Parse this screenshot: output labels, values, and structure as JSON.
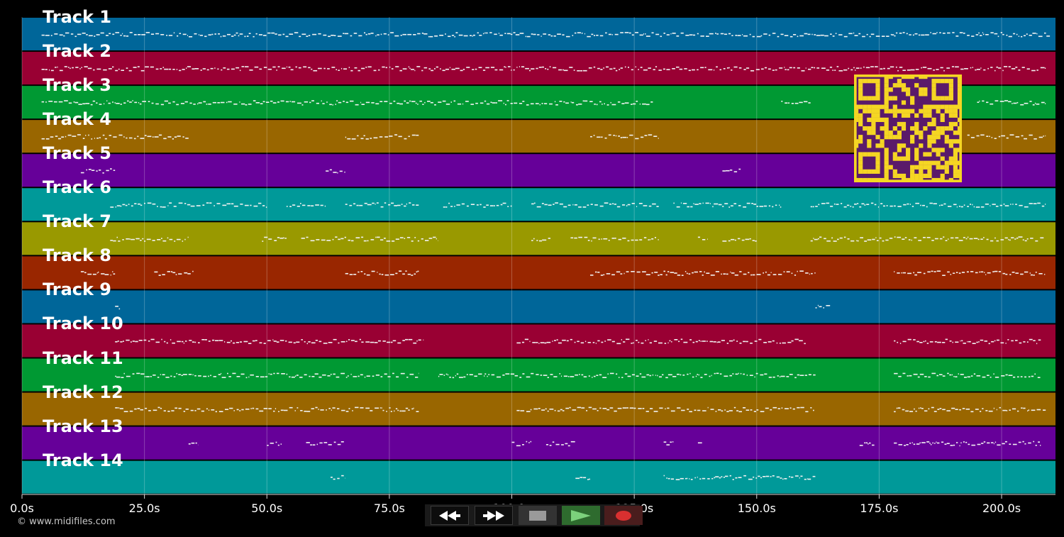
{
  "tracks": [
    {
      "label": "Track 1",
      "color": "#006699"
    },
    {
      "label": "Track 2",
      "color": "#990033"
    },
    {
      "label": "Track 3",
      "color": "#009933"
    },
    {
      "label": "Track 4",
      "color": "#996600"
    },
    {
      "label": "Track 5",
      "color": "#660099"
    },
    {
      "label": "Track 6",
      "color": "#009999"
    },
    {
      "label": "Track 7",
      "color": "#999900"
    },
    {
      "label": "Track 8",
      "color": "#992600"
    },
    {
      "label": "Track 9",
      "color": "#006699"
    },
    {
      "label": "Track 10",
      "color": "#990033"
    },
    {
      "label": "Track 11",
      "color": "#009933"
    },
    {
      "label": "Track 12",
      "color": "#996600"
    },
    {
      "label": "Track 13",
      "color": "#660099"
    },
    {
      "label": "Track 14",
      "color": "#009999"
    }
  ],
  "timeline": {
    "ticks": [
      {
        "value": 0,
        "label": "0.0s"
      },
      {
        "value": 25,
        "label": "25.0s"
      },
      {
        "value": 50,
        "label": "50.0s"
      },
      {
        "value": 75,
        "label": "75.0s"
      },
      {
        "value": 100,
        "label": "100.0s"
      },
      {
        "value": 125,
        "label": "125.0s"
      },
      {
        "value": 150,
        "label": "150.0s"
      },
      {
        "value": 175,
        "label": "175.0s"
      },
      {
        "value": 200,
        "label": "200.0s"
      }
    ],
    "max_seconds": 211
  },
  "copyright": "© www.midifiles.com",
  "transport": {
    "rewind_icon": "rewind-icon",
    "forward_icon": "fast-forward-icon",
    "stop_icon": "stop-icon",
    "play_icon": "play-icon",
    "record_icon": "record-icon",
    "play_color": "#7cd17c",
    "record_color": "#d83030"
  },
  "qr": {
    "fg": "#f5d623",
    "bg": "#5a1a6a"
  },
  "notes": {
    "t1": [
      [
        4,
        210
      ]
    ],
    "t2": [
      [
        4,
        209
      ]
    ],
    "t3": [
      [
        4,
        129
      ],
      [
        155,
        161
      ],
      [
        195,
        209
      ]
    ],
    "t4": [
      [
        4,
        34
      ],
      [
        66,
        81
      ],
      [
        116,
        130
      ],
      [
        193,
        209
      ]
    ],
    "t5": [
      [
        12,
        19
      ],
      [
        62,
        66
      ],
      [
        143,
        147
      ]
    ],
    "t6": [
      [
        18,
        50
      ],
      [
        54,
        62
      ],
      [
        66,
        81
      ],
      [
        86,
        100
      ],
      [
        104,
        130
      ],
      [
        133,
        155
      ],
      [
        161,
        209
      ]
    ],
    "t7": [
      [
        18,
        34
      ],
      [
        49,
        54
      ],
      [
        57,
        85
      ],
      [
        104,
        108
      ],
      [
        112,
        130
      ],
      [
        138,
        140
      ],
      [
        143,
        150
      ],
      [
        161,
        209
      ]
    ],
    "t8": [
      [
        12,
        19
      ],
      [
        27,
        35
      ],
      [
        66,
        81
      ],
      [
        116,
        162
      ],
      [
        178,
        209
      ]
    ],
    "t9": [
      [
        19,
        20
      ],
      [
        162,
        165
      ]
    ],
    "t10": [
      [
        19,
        82
      ],
      [
        101,
        160
      ],
      [
        178,
        208
      ]
    ],
    "t11": [
      [
        19,
        81
      ],
      [
        85,
        162
      ],
      [
        178,
        208
      ]
    ],
    "t12": [
      [
        19,
        81
      ],
      [
        101,
        162
      ],
      [
        178,
        209
      ]
    ],
    "t13": [
      [
        34,
        36
      ],
      [
        50,
        53
      ],
      [
        58,
        66
      ],
      [
        100,
        104
      ],
      [
        107,
        113
      ],
      [
        131,
        133
      ],
      [
        138,
        139
      ],
      [
        171,
        174
      ],
      [
        178,
        208
      ]
    ],
    "t14": [
      [
        63,
        66
      ],
      [
        113,
        116
      ],
      [
        131,
        162
      ]
    ]
  }
}
